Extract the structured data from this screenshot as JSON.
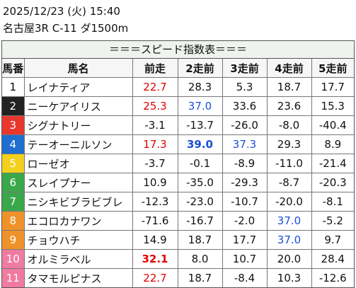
{
  "header": {
    "date": "2025/12/23 (火) 15:40",
    "race": "名古屋3R C-11 ダ1500m"
  },
  "table": {
    "title": "＝＝＝スピード指数表＝＝＝",
    "columns": [
      "馬番",
      "馬名",
      "前走",
      "2走前",
      "3走前",
      "4走前",
      "5走前"
    ],
    "rows": [
      {
        "number": "1",
        "gate_color": "#ffffff",
        "number_color": "#000000",
        "name": "レイナティア",
        "values": [
          {
            "text": "22.7",
            "color": "#e00000"
          },
          {
            "text": "28.3"
          },
          {
            "text": "5.3"
          },
          {
            "text": "18.7"
          },
          {
            "text": "17.7"
          }
        ]
      },
      {
        "number": "2",
        "gate_color": "#222222",
        "number_color": "#ffffff",
        "name": "ニーケアイリス",
        "values": [
          {
            "text": "25.3",
            "color": "#e00000"
          },
          {
            "text": "37.0",
            "color": "#1a4fd8"
          },
          {
            "text": "33.6"
          },
          {
            "text": "23.6"
          },
          {
            "text": "15.3"
          }
        ]
      },
      {
        "number": "3",
        "gate_color": "#e8382e",
        "number_color": "#ffffff",
        "name": "シグナトリー",
        "values": [
          {
            "text": "-3.1"
          },
          {
            "text": "-13.7"
          },
          {
            "text": "-26.0"
          },
          {
            "text": "-8.0"
          },
          {
            "text": "-40.4"
          }
        ]
      },
      {
        "number": "4",
        "gate_color": "#1e6fd0",
        "number_color": "#ffffff",
        "name": "テーオーニルソン",
        "values": [
          {
            "text": "17.3",
            "color": "#e00000"
          },
          {
            "text": "39.0",
            "color": "#1a4fd8",
            "bold": true
          },
          {
            "text": "37.3",
            "color": "#1a4fd8"
          },
          {
            "text": "29.3"
          },
          {
            "text": "8.9"
          }
        ]
      },
      {
        "number": "5",
        "gate_color": "#f2d01e",
        "number_color": "#ffffff",
        "name": "ローゼオ",
        "values": [
          {
            "text": "-3.7"
          },
          {
            "text": "-0.1"
          },
          {
            "text": "-8.9"
          },
          {
            "text": "-11.0"
          },
          {
            "text": "-21.4"
          }
        ]
      },
      {
        "number": "6",
        "gate_color": "#3aa84a",
        "number_color": "#ffffff",
        "name": "スレイプナー",
        "values": [
          {
            "text": "10.9"
          },
          {
            "text": "-35.0"
          },
          {
            "text": "-29.3"
          },
          {
            "text": "-8.7"
          },
          {
            "text": "-20.3"
          }
        ]
      },
      {
        "number": "7",
        "gate_color": "#3aa84a",
        "number_color": "#ffffff",
        "name": "ニシキビブラビブレ",
        "values": [
          {
            "text": "-12.3"
          },
          {
            "text": "-23.0"
          },
          {
            "text": "-10.7"
          },
          {
            "text": "-20.0"
          },
          {
            "text": "-8.1"
          }
        ]
      },
      {
        "number": "8",
        "gate_color": "#f0922a",
        "number_color": "#ffffff",
        "name": "エコロカナワン",
        "values": [
          {
            "text": "-71.6"
          },
          {
            "text": "-16.7"
          },
          {
            "text": "-2.0"
          },
          {
            "text": "37.0",
            "color": "#1a4fd8"
          },
          {
            "text": "-5.2"
          }
        ]
      },
      {
        "number": "9",
        "gate_color": "#f0922a",
        "number_color": "#ffffff",
        "name": "チョウハチ",
        "values": [
          {
            "text": "14.9"
          },
          {
            "text": "18.7"
          },
          {
            "text": "17.7"
          },
          {
            "text": "37.0",
            "color": "#1a4fd8"
          },
          {
            "text": "9.7"
          }
        ]
      },
      {
        "number": "10",
        "gate_color": "#f07aa0",
        "number_color": "#ffffff",
        "name": "オルミラベル",
        "values": [
          {
            "text": "32.1",
            "color": "#e00000",
            "bold": true
          },
          {
            "text": "8.0"
          },
          {
            "text": "10.7"
          },
          {
            "text": "20.0"
          },
          {
            "text": "28.4"
          }
        ]
      },
      {
        "number": "11",
        "gate_color": "#f07aa0",
        "number_color": "#ffffff",
        "name": "タマモルピナス",
        "values": [
          {
            "text": "22.7",
            "color": "#e00000"
          },
          {
            "text": "18.7"
          },
          {
            "text": "-8.4"
          },
          {
            "text": "10.3"
          },
          {
            "text": "-12.6"
          }
        ]
      }
    ]
  }
}
